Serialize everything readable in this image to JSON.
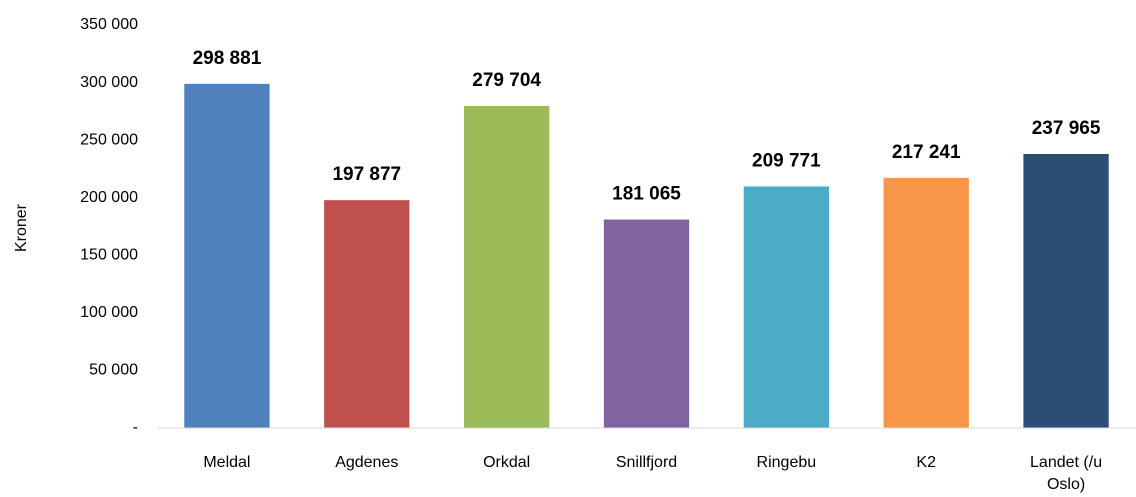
{
  "chart_data": {
    "type": "bar",
    "y_axis_label": "Kroner",
    "categories": [
      "Meldal",
      "Agdenes",
      "Orkdal",
      "Snillfjord",
      "Ringebu",
      "K2",
      "Landet (/u Oslo)"
    ],
    "values": [
      298881,
      197877,
      279704,
      181065,
      209771,
      217241,
      237965
    ],
    "value_labels": [
      "298 881",
      "197 877",
      "279 704",
      "181 065",
      "209 771",
      "217 241",
      "237 965"
    ],
    "colors": [
      "#4f81bd",
      "#c0504d",
      "#9bbb59",
      "#8064a2",
      "#4bacc6",
      "#f79646",
      "#2c4d75"
    ],
    "ylim": [
      0,
      350000
    ],
    "yticks": [
      {
        "value": 0,
        "label": "-"
      },
      {
        "value": 50000,
        "label": "50 000"
      },
      {
        "value": 100000,
        "label": "100 000"
      },
      {
        "value": 150000,
        "label": "150 000"
      },
      {
        "value": 200000,
        "label": "200 000"
      },
      {
        "value": 250000,
        "label": "250 000"
      },
      {
        "value": 300000,
        "label": "300 000"
      },
      {
        "value": 350000,
        "label": "350 000"
      }
    ],
    "grid": false
  }
}
